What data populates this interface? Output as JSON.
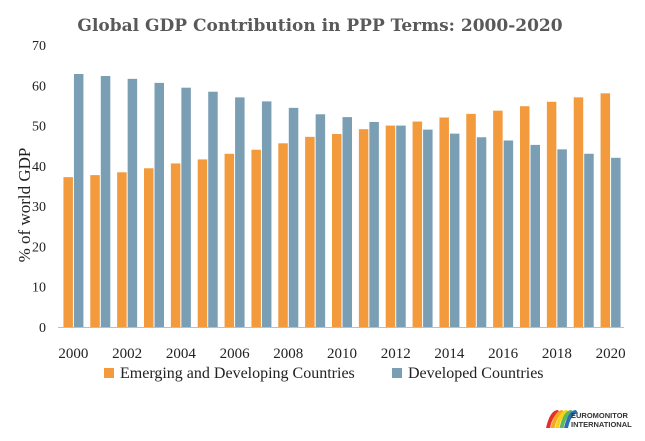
{
  "chart_data": {
    "type": "bar",
    "title": "Global GDP Contribution in PPP Terms: 2000-2020",
    "ylabel": "% of world GDP",
    "xlabel": "",
    "ylim": [
      0,
      70
    ],
    "yticks": [
      0,
      10,
      20,
      30,
      40,
      50,
      60,
      70
    ],
    "grid": false,
    "legend_position": "bottom",
    "categories": [
      "2000",
      "2001",
      "2002",
      "2003",
      "2004",
      "2005",
      "2006",
      "2007",
      "2008",
      "2009",
      "2010",
      "2011",
      "2012",
      "2013",
      "2014",
      "2015",
      "2016",
      "2017",
      "2018",
      "2019",
      "2020"
    ],
    "x_tick_labels": [
      "2000",
      "2002",
      "2004",
      "2006",
      "2008",
      "2010",
      "2012",
      "2014",
      "2016",
      "2018",
      "2020"
    ],
    "series": [
      {
        "name": "Emerging and Developing Countries",
        "color": "#f29a3c",
        "values": [
          37.2,
          37.7,
          38.4,
          39.4,
          40.6,
          41.6,
          43.0,
          44.0,
          45.6,
          47.2,
          47.9,
          49.1,
          50.0,
          51.0,
          52.0,
          52.9,
          53.7,
          54.8,
          55.9,
          57.0,
          58.0
        ]
      },
      {
        "name": "Developed Countries",
        "color": "#7a9fb4",
        "values": [
          62.8,
          62.3,
          61.6,
          60.6,
          59.4,
          58.4,
          57.0,
          56.0,
          54.4,
          52.8,
          52.1,
          50.9,
          50.0,
          49.0,
          48.0,
          47.1,
          46.3,
          45.2,
          44.1,
          43.0,
          42.0
        ]
      }
    ]
  },
  "logo": {
    "line1": "EUROMONITOR",
    "line2": "INTERNATIONAL",
    "colors": [
      "#e2312b",
      "#f5a623",
      "#f7d117",
      "#5cb85c",
      "#2a6fb5"
    ]
  }
}
